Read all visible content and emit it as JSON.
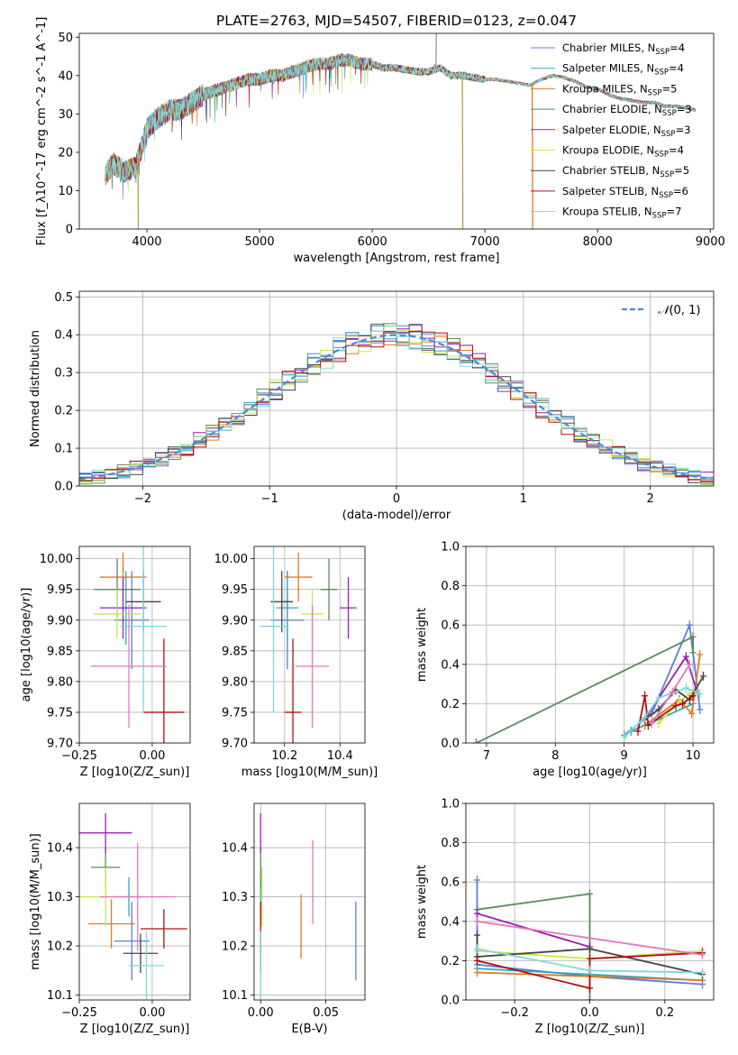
{
  "title": "PLATE=2763, MJD=54507, FIBERID=0123, z=0.047",
  "colors": [
    "#5b7fd8",
    "#2ca7c7",
    "#e07b20",
    "#5a8a5e",
    "#9a20b5",
    "#c8e84c",
    "#444444",
    "#b01010",
    "#7fd8d8"
  ],
  "series_names": [
    "Chabrier MILES, N$_{SSP}$=4",
    "Salpeter MILES, N$_{SSP}$=4",
    "Kroupa MILES, N$_{SSP}$=5",
    "Chabrier ELODIE, N$_{SSP}$=3",
    "Salpeter ELODIE, N$_{SSP}$=3",
    "Kroupa ELODIE, N$_{SSP}$=4",
    "Chabrier STELIB, N$_{SSP}$=5",
    "Salpeter STELIB, N$_{SSP}$=6",
    "Kroupa STELIB, N$_{SSP}$=7"
  ],
  "chart_data": [
    {
      "id": "spectrum",
      "type": "line",
      "title": "PLATE=2763, MJD=54507, FIBERID=0123, z=0.047",
      "xlabel": "wavelength [Angstrom, rest frame]",
      "ylabel": "Flux [f_λ10^-17 erg cm^-2 s^-1 A^-1]",
      "xlim": [
        3400,
        9030
      ],
      "ylim": [
        0,
        51
      ],
      "xticks": [
        4000,
        5000,
        6000,
        7000,
        8000,
        9000
      ],
      "yticks": [
        0,
        10,
        20,
        30,
        40,
        50
      ],
      "grid": false,
      "legend_position": "right",
      "legend": [
        {
          "main": "Chabrier MILES, N",
          "sub": "SSP",
          "tail": "=4"
        },
        {
          "main": "Salpeter MILES, N",
          "sub": "SSP",
          "tail": "=4"
        },
        {
          "main": "Kroupa MILES, N",
          "sub": "SSP",
          "tail": "=5"
        },
        {
          "main": "Chabrier ELODIE, N",
          "sub": "SSP",
          "tail": "=3"
        },
        {
          "main": "Salpeter ELODIE, N",
          "sub": "SSP",
          "tail": "=3"
        },
        {
          "main": "Kroupa ELODIE, N",
          "sub": "SSP",
          "tail": "=4"
        },
        {
          "main": "Chabrier STELIB, N",
          "sub": "SSP",
          "tail": "=5"
        },
        {
          "main": "Salpeter STELIB, N",
          "sub": "SSP",
          "tail": "=6"
        },
        {
          "main": "Kroupa STELIB, N",
          "sub": "SSP",
          "tail": "=7"
        }
      ],
      "continuum": [
        [
          3630,
          14
        ],
        [
          3700,
          17
        ],
        [
          3800,
          15
        ],
        [
          3900,
          16
        ],
        [
          4000,
          26
        ],
        [
          4100,
          29
        ],
        [
          4200,
          31
        ],
        [
          4300,
          31
        ],
        [
          4400,
          33
        ],
        [
          4500,
          35
        ],
        [
          4600,
          36
        ],
        [
          4700,
          37
        ],
        [
          4800,
          38
        ],
        [
          4900,
          39
        ],
        [
          5000,
          39
        ],
        [
          5100,
          40
        ],
        [
          5200,
          40
        ],
        [
          5300,
          41
        ],
        [
          5400,
          42
        ],
        [
          5500,
          43
        ],
        [
          5600,
          43
        ],
        [
          5700,
          44
        ],
        [
          5800,
          44
        ],
        [
          5900,
          43
        ],
        [
          6000,
          43
        ],
        [
          6100,
          42
        ],
        [
          6200,
          42
        ],
        [
          6300,
          41.5
        ],
        [
          6400,
          41
        ],
        [
          6500,
          41
        ],
        [
          6600,
          42
        ],
        [
          6700,
          40
        ],
        [
          6800,
          40
        ],
        [
          6900,
          39.5
        ],
        [
          7000,
          39
        ],
        [
          7100,
          39
        ],
        [
          7200,
          38.5
        ],
        [
          7300,
          38
        ],
        [
          7400,
          37.5
        ],
        [
          7500,
          39
        ],
        [
          7600,
          40
        ],
        [
          7700,
          39.5
        ],
        [
          7800,
          38.5
        ],
        [
          7900,
          37
        ],
        [
          8000,
          36.5
        ],
        [
          8100,
          35
        ],
        [
          8200,
          34
        ],
        [
          8300,
          33.5
        ],
        [
          8400,
          33
        ],
        [
          8500,
          33
        ],
        [
          8600,
          32
        ],
        [
          8700,
          32
        ],
        [
          8800,
          31.5
        ],
        [
          8870,
          31
        ]
      ],
      "spikes": [
        [
          3920,
          0
        ],
        [
          6800,
          0
        ],
        [
          7420,
          0
        ],
        [
          6565,
          51
        ],
        [
          6550,
          43
        ]
      ]
    },
    {
      "id": "residuals",
      "type": "histogram",
      "xlabel": "(data-model)/error",
      "ylabel": "Normed distribution",
      "xlim": [
        -2.5,
        2.5
      ],
      "ylim": [
        0,
        0.515
      ],
      "xticks": [
        -2,
        -1,
        0,
        1,
        2
      ],
      "yticks": [
        0.0,
        0.1,
        0.2,
        0.3,
        0.4,
        0.5
      ],
      "grid": true,
      "legend_position": "top-right",
      "legend_label": "$\\mathcal{N}(0,1)$",
      "bin_width": 0.1,
      "curve": "normal(0,1) pdf"
    },
    {
      "id": "age-vs-Z",
      "type": "scatter-errorbar",
      "xlabel": "Z [log10(Z/Z_sun)]",
      "ylabel": "age [log10(age/yr)]",
      "xlim": [
        -0.25,
        0.13
      ],
      "ylim": [
        9.7,
        10.02
      ],
      "xticks": [
        -0.25,
        0.0
      ],
      "yticks": [
        9.7,
        9.75,
        9.8,
        9.85,
        9.9,
        9.95,
        10.0
      ],
      "grid": true,
      "points": [
        {
          "x": -0.07,
          "y": 9.9,
          "xerr": 0.06,
          "yerr": 0.08
        },
        {
          "x": -0.09,
          "y": 9.92,
          "xerr": 0.04,
          "yerr": 0.06
        },
        {
          "x": -0.1,
          "y": 9.97,
          "xerr": 0.08,
          "yerr": 0.04
        },
        {
          "x": -0.12,
          "y": 9.95,
          "xerr": 0.08,
          "yerr": 0.05
        },
        {
          "x": -0.1,
          "y": 9.92,
          "xerr": 0.08,
          "yerr": 0.05
        },
        {
          "x": -0.12,
          "y": 9.91,
          "xerr": 0.08,
          "yerr": 0.04
        },
        {
          "x": -0.03,
          "y": 9.93,
          "xerr": 0.06,
          "yerr": 0.05
        },
        {
          "x": 0.04,
          "y": 9.75,
          "xerr": 0.07,
          "yerr": 0.12
        },
        {
          "x": -0.03,
          "y": 9.89,
          "xerr": 0.08,
          "yerr": 0.14
        }
      ],
      "extra_points": [
        {
          "x": -0.08,
          "y": 9.825,
          "xerr": 0.13,
          "yerr": 0.1,
          "color": "#e377c2"
        }
      ]
    },
    {
      "id": "age-vs-mass",
      "type": "scatter-errorbar",
      "xlabel": "mass [log10(M/M_sun)]",
      "ylabel": "",
      "xlim": [
        10.09,
        10.49
      ],
      "ylim": [
        9.7,
        10.02
      ],
      "xticks": [
        10.2,
        10.4
      ],
      "yticks": [
        9.7,
        9.75,
        9.8,
        9.85,
        9.9,
        9.95,
        10.0
      ],
      "grid": true,
      "points": [
        {
          "x": 10.21,
          "y": 9.9,
          "xerr": 0.06,
          "yerr": 0.08
        },
        {
          "x": 10.21,
          "y": 9.92,
          "xerr": 0.04,
          "yerr": 0.06
        },
        {
          "x": 10.25,
          "y": 9.97,
          "xerr": 0.05,
          "yerr": 0.04
        },
        {
          "x": 10.36,
          "y": 9.95,
          "xerr": 0.03,
          "yerr": 0.05
        },
        {
          "x": 10.43,
          "y": 9.92,
          "xerr": 0.03,
          "yerr": 0.05
        },
        {
          "x": 10.3,
          "y": 9.91,
          "xerr": 0.04,
          "yerr": 0.04
        },
        {
          "x": 10.19,
          "y": 9.93,
          "xerr": 0.04,
          "yerr": 0.05
        },
        {
          "x": 10.23,
          "y": 9.75,
          "xerr": 0.03,
          "yerr": 0.12
        },
        {
          "x": 10.16,
          "y": 9.89,
          "xerr": 0.05,
          "yerr": 0.14
        }
      ],
      "extra_points": [
        {
          "x": 10.3,
          "y": 9.825,
          "xerr": 0.06,
          "yerr": 0.1,
          "color": "#e377c2"
        }
      ]
    },
    {
      "id": "weight-vs-age",
      "type": "line",
      "xlabel": "age [log10(age/yr)]",
      "ylabel": "mass weight",
      "xlim": [
        6.7,
        10.3
      ],
      "ylim": [
        0,
        1
      ],
      "xticks": [
        7,
        8,
        9,
        10
      ],
      "yticks": [
        0.0,
        0.2,
        0.4,
        0.6,
        0.8,
        1.0
      ],
      "grid": true,
      "lines": [
        [
          [
            9.0,
            0.04
          ],
          [
            9.4,
            0.15
          ],
          [
            9.95,
            0.6
          ],
          [
            10.1,
            0.17
          ]
        ],
        [
          [
            9.1,
            0.06
          ],
          [
            9.5,
            0.12
          ],
          [
            10.0,
            0.2
          ]
        ],
        [
          [
            9.3,
            0.09
          ],
          [
            9.8,
            0.22
          ],
          [
            9.98,
            0.15
          ],
          [
            10.1,
            0.45
          ]
        ],
        [
          [
            6.85,
            0.0
          ],
          [
            10.0,
            0.54
          ],
          [
            10.0,
            0.46
          ]
        ],
        [
          [
            9.3,
            0.12
          ],
          [
            9.9,
            0.44
          ],
          [
            10.05,
            0.27
          ]
        ],
        [
          [
            9.5,
            0.1
          ],
          [
            9.8,
            0.21
          ],
          [
            9.95,
            0.25
          ],
          [
            10.05,
            0.27
          ]
        ],
        [
          [
            9.3,
            0.12
          ],
          [
            9.5,
            0.17
          ],
          [
            9.75,
            0.27
          ],
          [
            9.95,
            0.22
          ],
          [
            10.15,
            0.34
          ]
        ],
        [
          [
            9.2,
            0.06
          ],
          [
            9.3,
            0.24
          ],
          [
            9.35,
            0.09
          ],
          [
            9.75,
            0.19
          ],
          [
            9.85,
            0.2
          ],
          [
            10.0,
            0.24
          ]
        ],
        [
          [
            9.0,
            0.03
          ],
          [
            9.3,
            0.13
          ],
          [
            9.5,
            0.23
          ],
          [
            9.9,
            0.28
          ],
          [
            10.1,
            0.25
          ]
        ]
      ],
      "extra_lines": [
        {
          "color": "#e377c2",
          "points": [
            [
              9.4,
              0.1
            ],
            [
              9.7,
              0.26
            ],
            [
              9.95,
              0.4
            ]
          ]
        }
      ]
    },
    {
      "id": "mass-vs-Z",
      "type": "scatter-errorbar",
      "xlabel": "Z [log10(Z/Z_sun)]",
      "ylabel": "mass [log10(M/M_sun)]",
      "xlim": [
        -0.25,
        0.13
      ],
      "ylim": [
        10.09,
        10.49
      ],
      "xticks": [
        -0.25,
        0.0
      ],
      "yticks": [
        10.1,
        10.2,
        10.3,
        10.4
      ],
      "grid": true,
      "points": [
        {
          "x": -0.07,
          "y": 10.21,
          "xerr": 0.06,
          "yerr": 0.08
        },
        {
          "x": -0.08,
          "y": 10.3,
          "xerr": 0.05,
          "yerr": 0.04
        },
        {
          "x": -0.14,
          "y": 10.245,
          "xerr": 0.08,
          "yerr": 0.05
        },
        {
          "x": -0.16,
          "y": 10.36,
          "xerr": 0.05,
          "yerr": 0.04
        },
        {
          "x": -0.16,
          "y": 10.43,
          "xerr": 0.09,
          "yerr": 0.04
        },
        {
          "x": -0.16,
          "y": 10.3,
          "xerr": 0.09,
          "yerr": 0.06
        },
        {
          "x": -0.04,
          "y": 10.185,
          "xerr": 0.06,
          "yerr": 0.04
        },
        {
          "x": 0.04,
          "y": 10.235,
          "xerr": 0.08,
          "yerr": 0.04
        },
        {
          "x": -0.02,
          "y": 10.16,
          "xerr": 0.06,
          "yerr": 0.07
        }
      ],
      "extra_points": [
        {
          "x": -0.05,
          "y": 10.3,
          "xerr": 0.13,
          "yerr": 0.11,
          "color": "#e377c2"
        }
      ]
    },
    {
      "id": "mass-vs-EBV",
      "type": "scatter-errorbar",
      "xlabel": "E(B-V)",
      "ylabel": "",
      "xlim": [
        -0.005,
        0.08
      ],
      "ylim": [
        10.09,
        10.49
      ],
      "xticks": [
        0.0,
        0.05
      ],
      "yticks": [
        10.1,
        10.2,
        10.3,
        10.4
      ],
      "grid": true,
      "points": [
        {
          "x": 0.073,
          "y": 10.21,
          "xerr": 0,
          "yerr": 0.08
        },
        {
          "x": 0.0,
          "y": 10.3,
          "xerr": 0,
          "yerr": 0.04
        },
        {
          "x": 0.031,
          "y": 10.24,
          "xerr": 0,
          "yerr": 0.065
        },
        {
          "x": 0.0,
          "y": 10.36,
          "xerr": 0,
          "yerr": 0.04
        },
        {
          "x": 0.0,
          "y": 10.43,
          "xerr": 0,
          "yerr": 0.04
        },
        {
          "x": 0.001,
          "y": 10.3,
          "xerr": 0,
          "yerr": 0.06
        },
        {
          "x": 0.0,
          "y": 10.185,
          "xerr": 0,
          "yerr": 0.04
        },
        {
          "x": 0.0,
          "y": 10.24,
          "xerr": 0,
          "yerr": 0.05
        },
        {
          "x": 0.0,
          "y": 10.16,
          "xerr": 0,
          "yerr": 0.07
        }
      ],
      "extra_points": [
        {
          "x": 0.04,
          "y": 10.33,
          "xerr": 0,
          "yerr": 0.085,
          "color": "#e377c2"
        }
      ]
    },
    {
      "id": "weight-vs-Z",
      "type": "line",
      "xlabel": "Z [log10(Z/Z_sun)]",
      "ylabel": "mass weight",
      "xlim": [
        -0.33,
        0.33
      ],
      "ylim": [
        0,
        1
      ],
      "xticks": [
        -0.2,
        0.0,
        0.2
      ],
      "yticks": [
        0.0,
        0.2,
        0.4,
        0.6,
        0.8,
        1.0
      ],
      "grid": true,
      "lines": [
        [
          [
            -0.3,
            0.61
          ],
          [
            -0.3,
            0.18
          ],
          [
            0.0,
            0.12
          ],
          [
            0.3,
            0.08
          ]
        ],
        [
          [
            -0.3,
            0.16
          ],
          [
            0.0,
            0.13
          ],
          [
            0.3,
            0.1
          ]
        ],
        [
          [
            -0.3,
            0.14
          ],
          [
            0.0,
            0.12
          ],
          [
            0.3,
            0.1
          ]
        ],
        [
          [
            -0.3,
            0.46
          ],
          [
            0.0,
            0.54
          ],
          [
            0.0,
            0.0
          ]
        ],
        [
          [
            -0.3,
            0.44
          ],
          [
            0.0,
            0.27
          ]
        ],
        [
          [
            -0.3,
            0.25
          ],
          [
            0.0,
            0.21
          ],
          [
            0.3,
            0.25
          ]
        ],
        [
          [
            -0.3,
            0.33
          ],
          [
            -0.3,
            0.22
          ],
          [
            0.0,
            0.26
          ],
          [
            0.3,
            0.13
          ]
        ],
        [
          [
            -0.3,
            0.2
          ],
          [
            0.0,
            0.06
          ],
          [
            0.0,
            0.21
          ],
          [
            0.3,
            0.24
          ]
        ],
        [
          [
            -0.3,
            0.26
          ],
          [
            0.0,
            0.15
          ],
          [
            0.3,
            0.14
          ]
        ]
      ],
      "extra_lines": [
        {
          "color": "#e377c2",
          "points": [
            [
              -0.3,
              0.4
            ],
            [
              0.3,
              0.23
            ]
          ]
        }
      ]
    }
  ]
}
